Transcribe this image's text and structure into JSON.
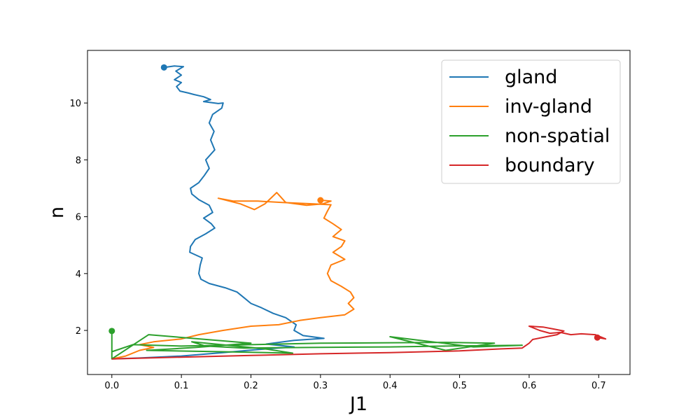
{
  "chart_data": {
    "type": "line",
    "xlabel": "J1",
    "ylabel": "n",
    "xlim": [
      -0.035,
      0.745
    ],
    "ylim": [
      0.45,
      11.85
    ],
    "x_ticks": [
      0.0,
      0.1,
      0.2,
      0.3,
      0.4,
      0.5,
      0.6,
      0.7
    ],
    "x_tick_labels": [
      "0.0",
      "0.1",
      "0.2",
      "0.3",
      "0.4",
      "0.5",
      "0.6",
      "0.7"
    ],
    "y_ticks": [
      2,
      4,
      6,
      8,
      10
    ],
    "y_tick_labels": [
      "2",
      "4",
      "6",
      "8",
      "10"
    ],
    "grid": false,
    "legend_position": "top-right",
    "series": [
      {
        "name": "gland",
        "color": "#1f77b4",
        "start": [
          0.075,
          11.25
        ],
        "points": [
          [
            0.075,
            11.25
          ],
          [
            0.09,
            11.3
          ],
          [
            0.103,
            11.28
          ],
          [
            0.092,
            11.12
          ],
          [
            0.1,
            10.98
          ],
          [
            0.09,
            10.82
          ],
          [
            0.1,
            10.72
          ],
          [
            0.093,
            10.58
          ],
          [
            0.098,
            10.42
          ],
          [
            0.11,
            10.35
          ],
          [
            0.118,
            10.3
          ],
          [
            0.132,
            10.22
          ],
          [
            0.142,
            10.12
          ],
          [
            0.132,
            10.05
          ],
          [
            0.153,
            9.98
          ],
          [
            0.16,
            10.0
          ],
          [
            0.158,
            9.82
          ],
          [
            0.145,
            9.6
          ],
          [
            0.14,
            9.3
          ],
          [
            0.147,
            9.0
          ],
          [
            0.142,
            8.7
          ],
          [
            0.148,
            8.35
          ],
          [
            0.135,
            8.0
          ],
          [
            0.14,
            7.7
          ],
          [
            0.133,
            7.45
          ],
          [
            0.125,
            7.2
          ],
          [
            0.113,
            7.0
          ],
          [
            0.115,
            6.8
          ],
          [
            0.125,
            6.6
          ],
          [
            0.14,
            6.4
          ],
          [
            0.145,
            6.15
          ],
          [
            0.132,
            5.95
          ],
          [
            0.143,
            5.75
          ],
          [
            0.148,
            5.6
          ],
          [
            0.135,
            5.4
          ],
          [
            0.12,
            5.2
          ],
          [
            0.113,
            4.95
          ],
          [
            0.112,
            4.75
          ],
          [
            0.13,
            4.55
          ],
          [
            0.127,
            4.3
          ],
          [
            0.125,
            4.0
          ],
          [
            0.128,
            3.8
          ],
          [
            0.14,
            3.65
          ],
          [
            0.163,
            3.5
          ],
          [
            0.18,
            3.35
          ],
          [
            0.19,
            3.15
          ],
          [
            0.2,
            2.95
          ],
          [
            0.215,
            2.8
          ],
          [
            0.232,
            2.6
          ],
          [
            0.25,
            2.45
          ],
          [
            0.265,
            2.2
          ],
          [
            0.262,
            2.0
          ],
          [
            0.275,
            1.82
          ],
          [
            0.305,
            1.72
          ],
          [
            0.262,
            1.65
          ],
          [
            0.222,
            1.52
          ],
          [
            0.262,
            1.42
          ],
          [
            0.205,
            1.32
          ],
          [
            0.16,
            1.22
          ],
          [
            0.1,
            1.1
          ],
          [
            0.04,
            1.03
          ],
          [
            0.0,
            1.0
          ]
        ]
      },
      {
        "name": "inv-gland",
        "color": "#ff7f0e",
        "start": [
          0.3,
          6.58
        ],
        "points": [
          [
            0.3,
            6.58
          ],
          [
            0.315,
            6.55
          ],
          [
            0.303,
            6.45
          ],
          [
            0.28,
            6.4
          ],
          [
            0.25,
            6.5
          ],
          [
            0.237,
            6.85
          ],
          [
            0.22,
            6.45
          ],
          [
            0.205,
            6.25
          ],
          [
            0.185,
            6.45
          ],
          [
            0.153,
            6.65
          ],
          [
            0.175,
            6.55
          ],
          [
            0.21,
            6.55
          ],
          [
            0.245,
            6.5
          ],
          [
            0.29,
            6.45
          ],
          [
            0.315,
            6.42
          ],
          [
            0.31,
            6.2
          ],
          [
            0.305,
            5.95
          ],
          [
            0.318,
            5.75
          ],
          [
            0.33,
            5.55
          ],
          [
            0.318,
            5.3
          ],
          [
            0.335,
            5.15
          ],
          [
            0.33,
            4.95
          ],
          [
            0.318,
            4.75
          ],
          [
            0.335,
            4.5
          ],
          [
            0.315,
            4.3
          ],
          [
            0.31,
            4.0
          ],
          [
            0.315,
            3.75
          ],
          [
            0.33,
            3.55
          ],
          [
            0.343,
            3.35
          ],
          [
            0.348,
            3.15
          ],
          [
            0.34,
            2.95
          ],
          [
            0.348,
            2.75
          ],
          [
            0.335,
            2.55
          ],
          [
            0.3,
            2.45
          ],
          [
            0.27,
            2.35
          ],
          [
            0.24,
            2.2
          ],
          [
            0.2,
            2.15
          ],
          [
            0.16,
            2.0
          ],
          [
            0.125,
            1.85
          ],
          [
            0.1,
            1.7
          ],
          [
            0.06,
            1.6
          ],
          [
            0.04,
            1.5
          ],
          [
            0.06,
            1.4
          ],
          [
            0.04,
            1.3
          ],
          [
            0.02,
            1.1
          ],
          [
            0.0,
            1.0
          ]
        ]
      },
      {
        "name": "non-spatial",
        "color": "#2ca02c",
        "start": [
          0.0,
          1.98
        ],
        "points": [
          [
            0.0,
            1.98
          ],
          [
            0.0,
            1.0
          ],
          [
            0.053,
            1.85
          ],
          [
            0.2,
            1.55
          ],
          [
            0.12,
            1.4
          ],
          [
            0.05,
            1.3
          ],
          [
            0.16,
            1.25
          ],
          [
            0.26,
            1.2
          ],
          [
            0.22,
            1.35
          ],
          [
            0.115,
            1.6
          ],
          [
            0.135,
            1.45
          ],
          [
            0.19,
            1.38
          ],
          [
            0.28,
            1.4
          ],
          [
            0.4,
            1.42
          ],
          [
            0.48,
            1.45
          ],
          [
            0.59,
            1.48
          ],
          [
            0.52,
            1.42
          ],
          [
            0.4,
            1.78
          ],
          [
            0.48,
            1.3
          ],
          [
            0.55,
            1.55
          ],
          [
            0.48,
            1.58
          ],
          [
            0.3,
            1.55
          ],
          [
            0.2,
            1.5
          ],
          [
            0.1,
            1.45
          ],
          [
            0.03,
            1.5
          ],
          [
            0.0,
            1.25
          ],
          [
            0.0,
            1.0
          ]
        ]
      },
      {
        "name": "boundary",
        "color": "#d62728",
        "start": [
          0.698,
          1.75
        ],
        "points": [
          [
            0.698,
            1.75
          ],
          [
            0.71,
            1.7
          ],
          [
            0.695,
            1.85
          ],
          [
            0.675,
            1.88
          ],
          [
            0.66,
            1.85
          ],
          [
            0.645,
            1.93
          ],
          [
            0.63,
            1.9
          ],
          [
            0.615,
            2.0
          ],
          [
            0.6,
            2.15
          ],
          [
            0.62,
            2.12
          ],
          [
            0.635,
            2.05
          ],
          [
            0.65,
            1.98
          ],
          [
            0.64,
            1.85
          ],
          [
            0.625,
            1.78
          ],
          [
            0.605,
            1.68
          ],
          [
            0.6,
            1.55
          ],
          [
            0.59,
            1.38
          ],
          [
            0.56,
            1.35
          ],
          [
            0.5,
            1.28
          ],
          [
            0.45,
            1.25
          ],
          [
            0.4,
            1.22
          ],
          [
            0.3,
            1.18
          ],
          [
            0.2,
            1.12
          ],
          [
            0.1,
            1.06
          ],
          [
            0.0,
            1.0
          ]
        ]
      }
    ]
  }
}
